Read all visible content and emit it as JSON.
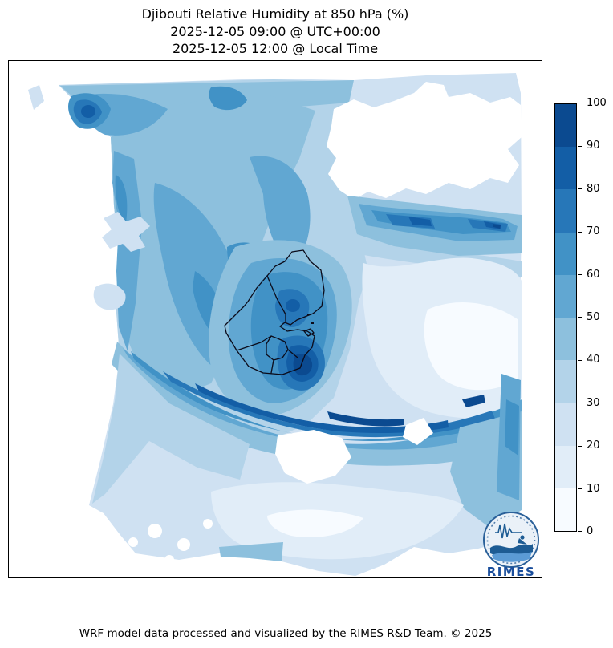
{
  "figure": {
    "title_lines": [
      "Djibouti Relative Humidity at 850 hPa (%)",
      "2025-12-05 09:00 @ UTC+00:00",
      "2025-12-05 12:00 @ Local Time"
    ],
    "footer": "WRF model data processed and visualized by the RIMES R&D Team. © 2025",
    "colorbar": {
      "min": 0,
      "max": 100,
      "ticks": [
        0,
        10,
        20,
        30,
        40,
        50,
        60,
        70,
        80,
        90,
        100
      ],
      "colors": [
        "#f7fbff",
        "#e1edf8",
        "#cfe1f2",
        "#b3d3e9",
        "#8dc0dd",
        "#61a7d2",
        "#4192c6",
        "#2777b8",
        "#135ea6",
        "#0b4a90"
      ],
      "frame_color": "#000000"
    },
    "map": {
      "overlay": "Djibouti national and regional boundaries",
      "boundary_color": "#0b0b1a",
      "no_data_color": "#ffffff"
    },
    "logo": {
      "text": "RIMES",
      "text_color": "#1a4e9c",
      "ring_color": "#2a6099"
    }
  },
  "chart_data": {
    "type": "heatmap",
    "title": "Djibouti Relative Humidity at 850 hPa (%)",
    "variable": "Relative Humidity at 850 hPa",
    "units": "%",
    "valid_time_utc": "2025-12-05 09:00 @ UTC+00:00",
    "valid_time_local": "2025-12-05 12:00 @ Local Time",
    "colorbar_levels": [
      0,
      10,
      20,
      30,
      40,
      50,
      60,
      70,
      80,
      90,
      100
    ],
    "colorbar_colors": [
      "#f7fbff",
      "#e1edf8",
      "#cfe1f2",
      "#b3d3e9",
      "#8dc0dd",
      "#61a7d2",
      "#4192c6",
      "#2777b8",
      "#135ea6",
      "#0b4a90"
    ],
    "legend_position": "right",
    "visible_pattern": [
      {
        "area": "west / northwest of domain",
        "rh_percent": "40-70"
      },
      {
        "area": "dark arc from southwest through southern Djibouti to east edge",
        "rh_percent": "80-100"
      },
      {
        "area": "northeast horizontal band",
        "rh_percent": "70-95"
      },
      {
        "area": "east of Djibouti (pale swath)",
        "rh_percent": "0-20"
      },
      {
        "area": "bottom-center",
        "rh_percent": "0-20"
      },
      {
        "area": "top-right blob, left margin, below-band notch",
        "rh_percent": "no data (white)"
      }
    ]
  }
}
